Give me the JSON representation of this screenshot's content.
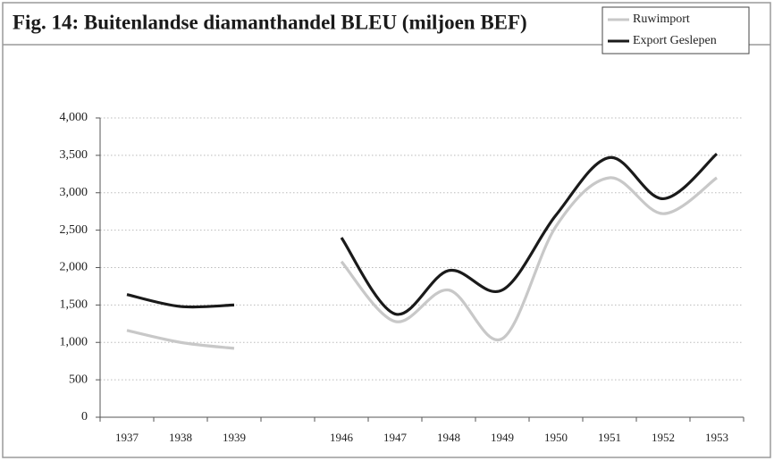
{
  "chart_data": {
    "type": "line",
    "title": "Fig. 14: Buitenlandse diamanthandel BLEU (miljoen BEF)",
    "categories": [
      "1937",
      "1938",
      "1939",
      null,
      "1946",
      "1947",
      "1948",
      "1949",
      "1950",
      "1951",
      "1952",
      "1953"
    ],
    "series": [
      {
        "name": "Ruwimport",
        "color": "#c8c8c8",
        "values": [
          1160,
          1000,
          920,
          null,
          2080,
          1280,
          1700,
          1050,
          2550,
          3200,
          2720,
          3200
        ]
      },
      {
        "name": "Export Geslepen",
        "color": "#1a1a1a",
        "values": [
          1640,
          1480,
          1500,
          null,
          2400,
          1380,
          1960,
          1700,
          2700,
          3470,
          2920,
          3520
        ]
      }
    ],
    "ylim": [
      0,
      4000
    ],
    "yticks": [
      0,
      500,
      {
        "value": 1000,
        "label": "1,000"
      },
      {
        "value": 1500,
        "label": "1,500"
      },
      {
        "value": 2000,
        "label": "2,000"
      },
      {
        "value": 2500,
        "label": "2,500"
      },
      {
        "value": 3000,
        "label": "3,000"
      },
      {
        "value": 3500,
        "label": "3,500"
      },
      {
        "value": 4000,
        "label": "4,000"
      }
    ],
    "grid": true,
    "legend": "top-right"
  }
}
